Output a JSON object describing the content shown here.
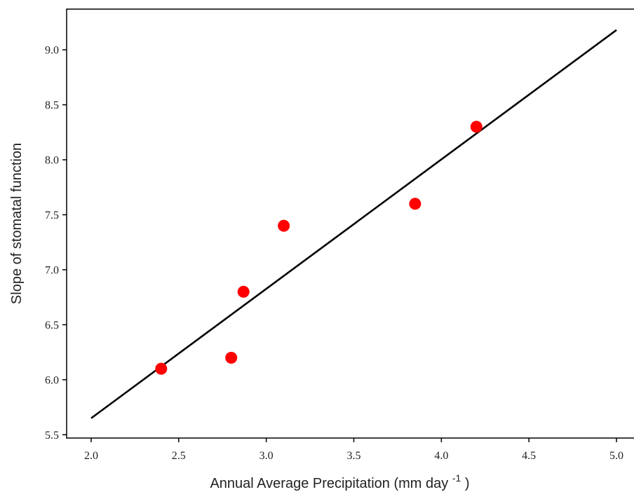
{
  "chart_data": {
    "type": "scatter",
    "title": "",
    "xlabel": "Annual Average Precipitation (mm day",
    "xlabel_superscript": "-1",
    "xlabel_suffix": ")",
    "ylabel": "Slope of stomatal function",
    "xlim": [
      1.86,
      5.1
    ],
    "ylim": [
      5.47,
      9.37
    ],
    "x_ticks": [
      "2.0",
      "2.5",
      "3.0",
      "3.5",
      "4.0",
      "4.5",
      "5.0"
    ],
    "y_ticks": [
      "5.5",
      "6.0",
      "6.5",
      "7.0",
      "7.5",
      "8.0",
      "8.5",
      "9.0"
    ],
    "grid": false,
    "series": [
      {
        "kind": "points",
        "color": "#ff0000",
        "points": [
          {
            "x": 2.4,
            "y": 6.1
          },
          {
            "x": 2.8,
            "y": 6.2
          },
          {
            "x": 2.87,
            "y": 6.8
          },
          {
            "x": 3.1,
            "y": 7.4
          },
          {
            "x": 3.85,
            "y": 7.6
          },
          {
            "x": 4.2,
            "y": 8.3
          }
        ]
      },
      {
        "kind": "fit-line",
        "color": "#000000",
        "points": [
          {
            "x": 2.0,
            "y": 5.65
          },
          {
            "x": 5.0,
            "y": 9.18
          }
        ]
      }
    ]
  }
}
